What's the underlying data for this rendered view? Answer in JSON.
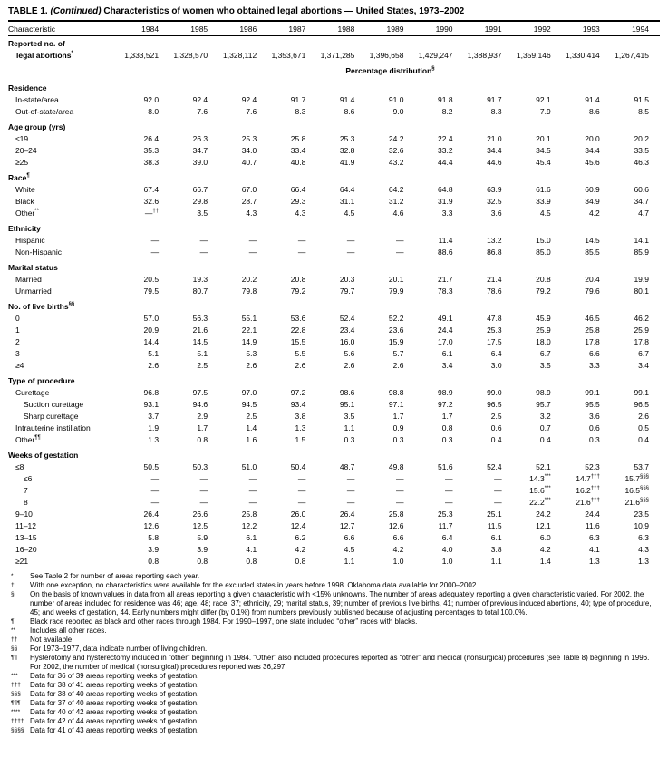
{
  "title": {
    "prefix": "TABLE 1. ",
    "continued": "(Continued)",
    "suffix": " Characteristics of women who obtained legal abortions — United States, 1973–2002"
  },
  "table": {
    "stub_header": "Characteristic",
    "years": [
      "1984",
      "1985",
      "1986",
      "1987",
      "1988",
      "1989",
      "1990",
      "1991",
      "1992",
      "1993",
      "1994"
    ],
    "reported_row": {
      "label": "Reported no. of legal abortions*",
      "values": [
        "1,333,521",
        "1,328,570",
        "1,328,112",
        "1,353,671",
        "1,371,285",
        "1,396,658",
        "1,429,247",
        "1,388,937",
        "1,359,146",
        "1,330,414",
        "1,267,415"
      ]
    },
    "spanner": "Percentage distribution§",
    "sections": [
      {
        "name": "Residence",
        "rows": [
          {
            "label": "In-state/area",
            "indent": 1,
            "values": [
              "92.0",
              "92.4",
              "92.4",
              "91.7",
              "91.4",
              "91.0",
              "91.8",
              "91.7",
              "92.1",
              "91.4",
              "91.5"
            ]
          },
          {
            "label": "Out-of-state/area",
            "indent": 1,
            "values": [
              "8.0",
              "7.6",
              "7.6",
              "8.3",
              "8.6",
              "9.0",
              "8.2",
              "8.3",
              "7.9",
              "8.6",
              "8.5"
            ]
          }
        ]
      },
      {
        "name": "Age group (yrs)",
        "rows": [
          {
            "label": "≤19",
            "indent": 1,
            "values": [
              "26.4",
              "26.3",
              "25.3",
              "25.8",
              "25.3",
              "24.2",
              "22.4",
              "21.0",
              "20.1",
              "20.0",
              "20.2"
            ]
          },
          {
            "label": "20–24",
            "indent": 1,
            "values": [
              "35.3",
              "34.7",
              "34.0",
              "33.4",
              "32.8",
              "32.6",
              "33.2",
              "34.4",
              "34.5",
              "34.4",
              "33.5"
            ]
          },
          {
            "label": "≥25",
            "indent": 1,
            "values": [
              "38.3",
              "39.0",
              "40.7",
              "40.8",
              "41.9",
              "43.2",
              "44.4",
              "44.6",
              "45.4",
              "45.6",
              "46.3"
            ]
          }
        ]
      },
      {
        "name": "Race¶",
        "rows": [
          {
            "label": "White",
            "indent": 1,
            "values": [
              "67.4",
              "66.7",
              "67.0",
              "66.4",
              "64.4",
              "64.2",
              "64.8",
              "63.9",
              "61.6",
              "60.9",
              "60.6"
            ]
          },
          {
            "label": "Black",
            "indent": 1,
            "values": [
              "32.6",
              "29.8",
              "28.7",
              "29.3",
              "31.1",
              "31.2",
              "31.9",
              "32.5",
              "33.9",
              "34.9",
              "34.7"
            ]
          },
          {
            "label": "Other**",
            "indent": 1,
            "values": [
              "—††",
              "3.5",
              "4.3",
              "4.3",
              "4.5",
              "4.6",
              "3.3",
              "3.6",
              "4.5",
              "4.2",
              "4.7"
            ]
          }
        ]
      },
      {
        "name": "Ethnicity",
        "rows": [
          {
            "label": "Hispanic",
            "indent": 1,
            "values": [
              "—",
              "—",
              "—",
              "—",
              "—",
              "—",
              "11.4",
              "13.2",
              "15.0",
              "14.5",
              "14.1"
            ]
          },
          {
            "label": "Non-Hispanic",
            "indent": 1,
            "values": [
              "—",
              "—",
              "—",
              "—",
              "—",
              "—",
              "88.6",
              "86.8",
              "85.0",
              "85.5",
              "85.9"
            ]
          }
        ]
      },
      {
        "name": "Marital status",
        "rows": [
          {
            "label": "Married",
            "indent": 1,
            "values": [
              "20.5",
              "19.3",
              "20.2",
              "20.8",
              "20.3",
              "20.1",
              "21.7",
              "21.4",
              "20.8",
              "20.4",
              "19.9"
            ]
          },
          {
            "label": "Unmarried",
            "indent": 1,
            "values": [
              "79.5",
              "80.7",
              "79.8",
              "79.2",
              "79.7",
              "79.9",
              "78.3",
              "78.6",
              "79.2",
              "79.6",
              "80.1"
            ]
          }
        ]
      },
      {
        "name": "No. of live births§§",
        "rows": [
          {
            "label": "0",
            "indent": 1,
            "values": [
              "57.0",
              "56.3",
              "55.1",
              "53.6",
              "52.4",
              "52.2",
              "49.1",
              "47.8",
              "45.9",
              "46.5",
              "46.2"
            ]
          },
          {
            "label": "1",
            "indent": 1,
            "values": [
              "20.9",
              "21.6",
              "22.1",
              "22.8",
              "23.4",
              "23.6",
              "24.4",
              "25.3",
              "25.9",
              "25.8",
              "25.9"
            ]
          },
          {
            "label": "2",
            "indent": 1,
            "values": [
              "14.4",
              "14.5",
              "14.9",
              "15.5",
              "16.0",
              "15.9",
              "17.0",
              "17.5",
              "18.0",
              "17.8",
              "17.8"
            ]
          },
          {
            "label": "3",
            "indent": 1,
            "values": [
              "5.1",
              "5.1",
              "5.3",
              "5.5",
              "5.6",
              "5.7",
              "6.1",
              "6.4",
              "6.7",
              "6.6",
              "6.7"
            ]
          },
          {
            "label": "≥4",
            "indent": 1,
            "values": [
              "2.6",
              "2.5",
              "2.6",
              "2.6",
              "2.6",
              "2.6",
              "3.4",
              "3.0",
              "3.5",
              "3.3",
              "3.4"
            ]
          }
        ]
      },
      {
        "name": "Type of procedure",
        "rows": [
          {
            "label": "Curettage",
            "indent": 1,
            "values": [
              "96.8",
              "97.5",
              "97.0",
              "97.2",
              "98.6",
              "98.8",
              "98.9",
              "99.0",
              "98.9",
              "99.1",
              "99.1"
            ]
          },
          {
            "label": "Suction curettage",
            "indent": 2,
            "values": [
              "93.1",
              "94.6",
              "94.5",
              "93.4",
              "95.1",
              "97.1",
              "97.2",
              "96.5",
              "95.7",
              "95.5",
              "96.5"
            ]
          },
          {
            "label": "Sharp curettage",
            "indent": 2,
            "values": [
              "3.7",
              "2.9",
              "2.5",
              "3.8",
              "3.5",
              "1.7",
              "1.7",
              "2.5",
              "3.2",
              "3.6",
              "2.6"
            ]
          },
          {
            "label": "Intrauterine instillation",
            "indent": 1,
            "values": [
              "1.9",
              "1.7",
              "1.4",
              "1.3",
              "1.1",
              "0.9",
              "0.8",
              "0.6",
              "0.7",
              "0.6",
              "0.5"
            ]
          },
          {
            "label": "Other¶¶",
            "indent": 1,
            "values": [
              "1.3",
              "0.8",
              "1.6",
              "1.5",
              "0.3",
              "0.3",
              "0.3",
              "0.4",
              "0.4",
              "0.3",
              "0.4"
            ]
          }
        ]
      },
      {
        "name": "Weeks of gestation",
        "rows": [
          {
            "label": "≤8",
            "indent": 1,
            "values": [
              "50.5",
              "50.3",
              "51.0",
              "50.4",
              "48.7",
              "49.8",
              "51.6",
              "52.4",
              "52.1",
              "52.3",
              "53.7"
            ]
          },
          {
            "label": "≤6",
            "indent": 2,
            "values": [
              "—",
              "—",
              "—",
              "—",
              "—",
              "—",
              "—",
              "—",
              "14.3***",
              "14.7†††",
              "15.7§§§"
            ]
          },
          {
            "label": "7",
            "indent": 2,
            "values": [
              "—",
              "—",
              "—",
              "—",
              "—",
              "—",
              "—",
              "—",
              "15.6***",
              "16.2†††",
              "16.5§§§"
            ]
          },
          {
            "label": "8",
            "indent": 2,
            "values": [
              "—",
              "—",
              "—",
              "—",
              "—",
              "—",
              "—",
              "—",
              "22.2***",
              "21.6†††",
              "21.6§§§"
            ]
          },
          {
            "label": "9–10",
            "indent": 1,
            "values": [
              "26.4",
              "26.6",
              "25.8",
              "26.0",
              "26.4",
              "25.8",
              "25.3",
              "25.1",
              "24.2",
              "24.4",
              "23.5"
            ]
          },
          {
            "label": "11–12",
            "indent": 1,
            "values": [
              "12.6",
              "12.5",
              "12.2",
              "12.4",
              "12.7",
              "12.6",
              "11.7",
              "11.5",
              "12.1",
              "11.6",
              "10.9"
            ]
          },
          {
            "label": "13–15",
            "indent": 1,
            "values": [
              "5.8",
              "5.9",
              "6.1",
              "6.2",
              "6.6",
              "6.6",
              "6.4",
              "6.1",
              "6.0",
              "6.3",
              "6.3"
            ]
          },
          {
            "label": "16–20",
            "indent": 1,
            "values": [
              "3.9",
              "3.9",
              "4.1",
              "4.2",
              "4.5",
              "4.2",
              "4.0",
              "3.8",
              "4.2",
              "4.1",
              "4.3"
            ]
          },
          {
            "label": "≥21",
            "indent": 1,
            "values": [
              "0.8",
              "0.8",
              "0.8",
              "0.8",
              "1.1",
              "1.0",
              "1.0",
              "1.1",
              "1.4",
              "1.3",
              "1.3"
            ]
          }
        ]
      }
    ]
  },
  "footnotes": [
    {
      "marker": "*",
      "text": "See Table 2 for number of areas reporting each year."
    },
    {
      "marker": "†",
      "text": "With one exception, no characteristics were available for the excluded states in years before 1998. Oklahoma data available for 2000–2002."
    },
    {
      "marker": "§",
      "text": "On the basis of known values in data from all areas reporting a given characteristic with <15% unknowns. The number of areas adequately reporting a given characteristic varied. For 2002, the number of areas included for residence was 46; age, 48; race, 37; ethnicity, 29; marital status, 39; number of previous live births, 41; number of previous induced abortions, 40; type of procedure, 45; and weeks of gestation, 44. Early numbers might differ (by 0.1%) from numbers previously published because of adjusting percentages to total 100.0%."
    },
    {
      "marker": "¶",
      "text": "Black race reported as black and other races through 1984. For 1990–1997, one state included “other” races with blacks."
    },
    {
      "marker": "**",
      "text": "Includes all other races."
    },
    {
      "marker": "††",
      "text": "Not available."
    },
    {
      "marker": "§§",
      "text": "For 1973–1977, data indicate number of living children."
    },
    {
      "marker": "¶¶",
      "text": "Hysterotomy and hysterectomy included in “other” beginning in 1984. “Other” also included procedures reported as “other” and medical (nonsurgical) procedures (see Table 8) beginning in 1996. For 2002, the number of medical (nonsurgical) procedures reported was 36,297."
    },
    {
      "marker": "***",
      "text": "Data for 36 of 39 areas reporting weeks of gestation."
    },
    {
      "marker": "†††",
      "text": "Data for 38 of 41 areas reporting weeks of gestation."
    },
    {
      "marker": "§§§",
      "text": "Data for 38 of 40 areas reporting weeks of gestation."
    },
    {
      "marker": "¶¶¶",
      "text": "Data for 37 of 40 areas reporting weeks of gestation."
    },
    {
      "marker": "****",
      "text": "Data for 40 of 42 areas reporting weeks of gestation."
    },
    {
      "marker": "††††",
      "text": "Data for 42 of 44 areas reporting weeks of gestation."
    },
    {
      "marker": "§§§§",
      "text": "Data for 41 of 43 areas reporting weeks of gestation."
    }
  ]
}
